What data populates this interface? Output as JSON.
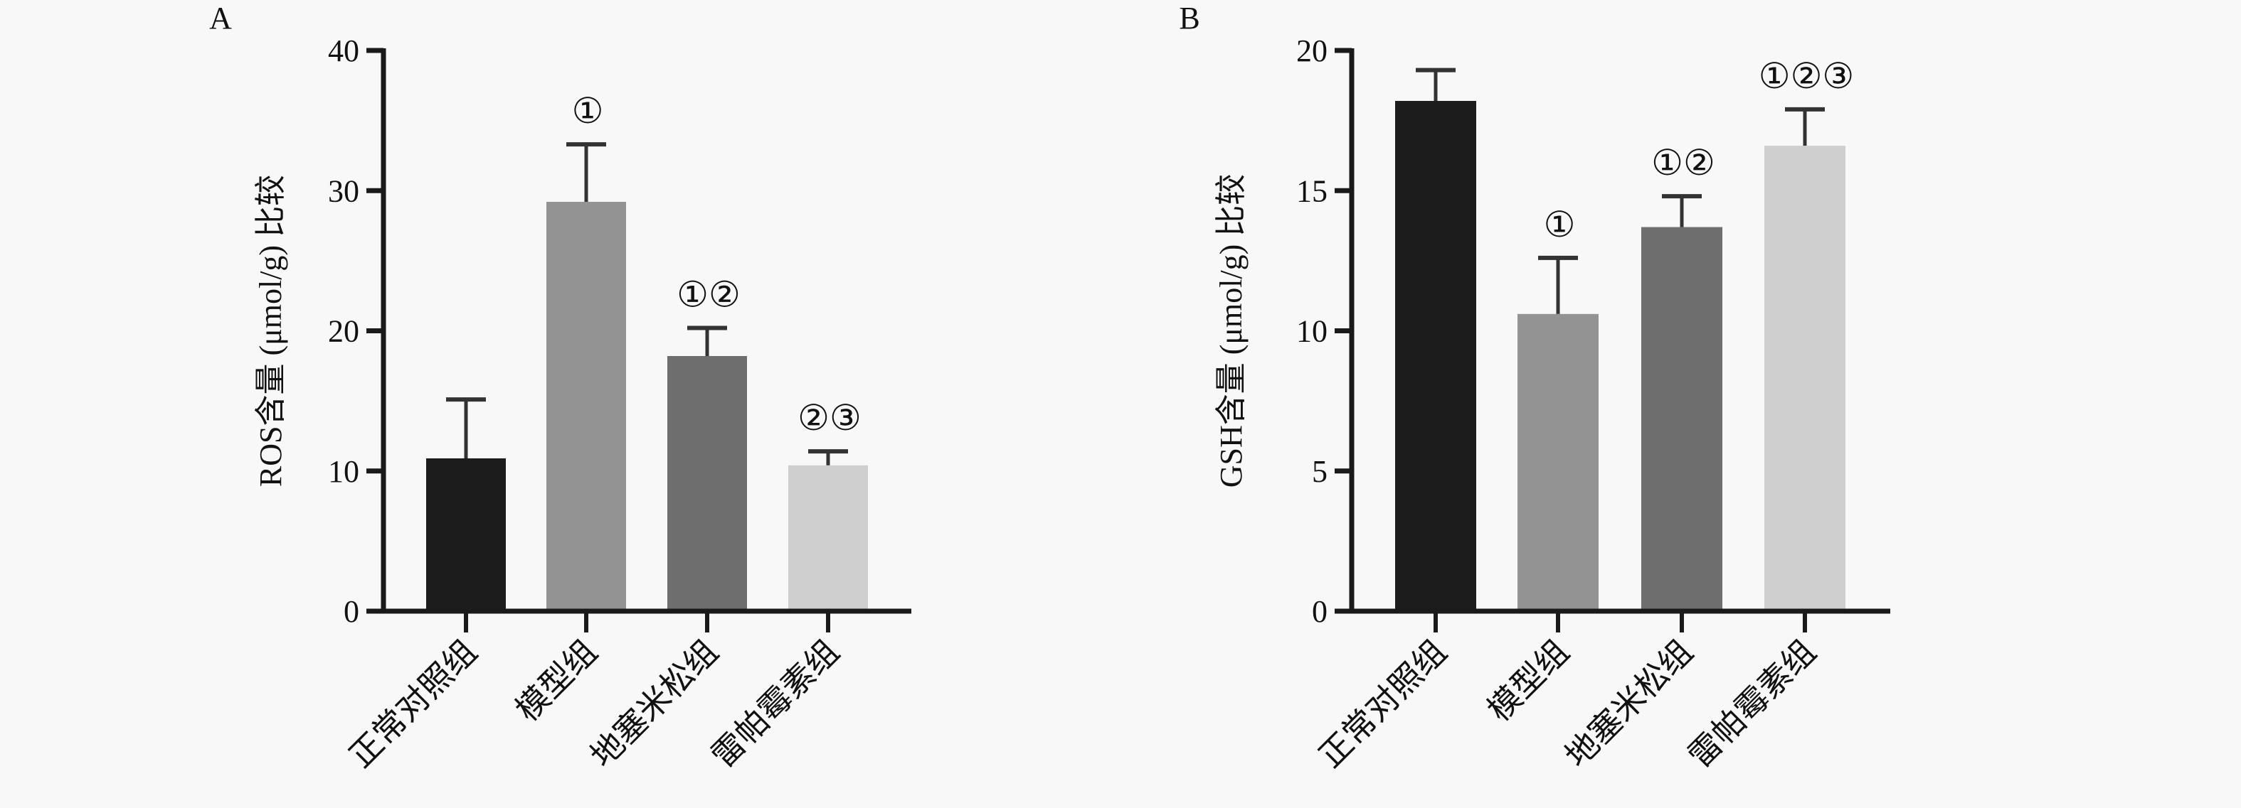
{
  "chart_data": [
    {
      "type": "bar",
      "panel_label": "A",
      "title": "",
      "xlabel": "",
      "ylabel": "ROS含量 (μmol/g) 比较",
      "categories": [
        "正常对照组",
        "模型组",
        "地塞米松组",
        "雷帕霉素组"
      ],
      "values": [
        10.9,
        29.2,
        18.2,
        10.4
      ],
      "error_upper": [
        15.1,
        33.3,
        20.2,
        11.4
      ],
      "significance": [
        "",
        "①",
        "①②",
        "②③"
      ],
      "colors": [
        "#1c1c1c",
        "#939393",
        "#6e6e6e",
        "#cfcfcf"
      ],
      "ylim": [
        0,
        40
      ],
      "yticks": [
        "0",
        "10",
        "20",
        "30",
        "40"
      ],
      "ytick_values": [
        0,
        10,
        20,
        30,
        40
      ],
      "grid": false
    },
    {
      "type": "bar",
      "panel_label": "B",
      "title": "",
      "xlabel": "",
      "ylabel": "GSH含量 (μmol/g) 比较",
      "categories": [
        "正常对照组",
        "模型组",
        "地塞米松组",
        "雷帕霉素组"
      ],
      "values": [
        18.2,
        10.6,
        13.7,
        16.6
      ],
      "error_upper": [
        19.3,
        12.6,
        14.8,
        17.9
      ],
      "significance": [
        "",
        "①",
        "①②",
        "①②③"
      ],
      "colors": [
        "#1c1c1c",
        "#939393",
        "#6e6e6e",
        "#cfcfcf"
      ],
      "ylim": [
        0,
        20
      ],
      "yticks": [
        "0",
        "5",
        "10",
        "15",
        "20"
      ],
      "ytick_values": [
        0,
        5,
        10,
        15,
        20
      ],
      "grid": false
    }
  ]
}
